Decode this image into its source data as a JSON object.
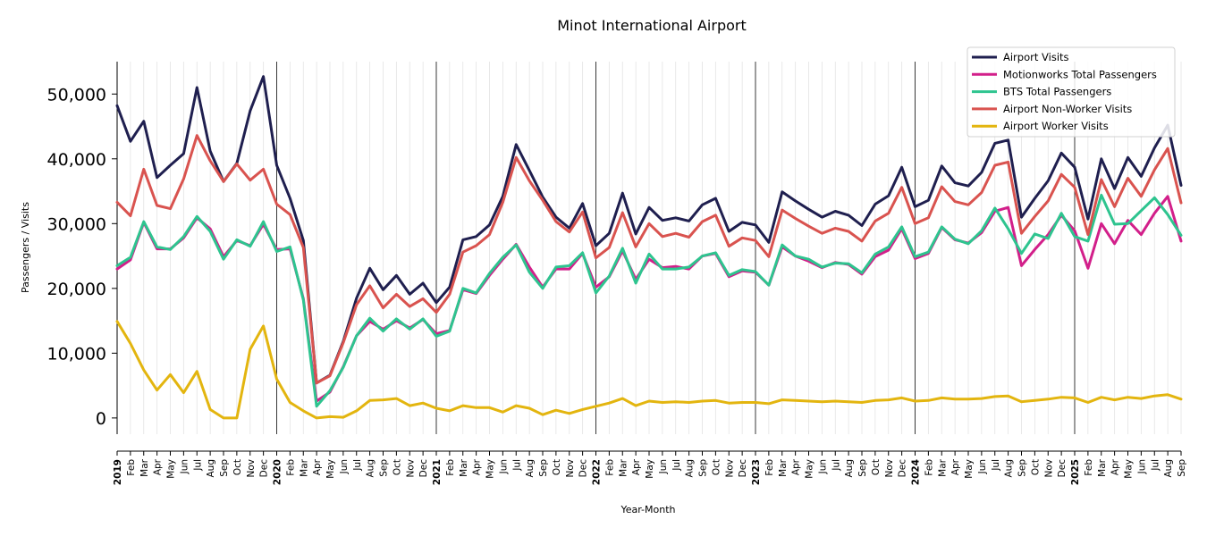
{
  "chart_data": {
    "type": "line",
    "title": "Minot International Airport",
    "xlabel": "Year-Month",
    "ylabel": "Passengers / Visits",
    "ylim": [
      -2500,
      55000
    ],
    "yticks": [
      0,
      10000,
      20000,
      30000,
      40000,
      50000
    ],
    "ytick_labels": [
      "0",
      "10,000",
      "20,000",
      "30,000",
      "40,000",
      "50,000"
    ],
    "grid": "vertical monthly lines, darker line at each year start",
    "legend_position": "top-right",
    "x": [
      "2019",
      "Feb",
      "Mar",
      "Apr",
      "May",
      "Jun",
      "Jul",
      "Aug",
      "Sep",
      "Oct",
      "Nov",
      "Dec",
      "2020",
      "Feb",
      "Mar",
      "Apr",
      "May",
      "Jun",
      "Jul",
      "Aug",
      "Sep",
      "Oct",
      "Nov",
      "Dec",
      "2021",
      "Feb",
      "Mar",
      "Apr",
      "May",
      "Jun",
      "Jul",
      "Aug",
      "Sep",
      "Oct",
      "Nov",
      "Dec",
      "2022",
      "Feb",
      "Mar",
      "Apr",
      "May",
      "Jun",
      "Jul",
      "Aug",
      "Sep",
      "Oct",
      "Nov",
      "Dec",
      "2023",
      "Feb",
      "Mar",
      "Apr",
      "May",
      "Jun",
      "Jul",
      "Aug",
      "Sep",
      "Oct",
      "Nov",
      "Dec",
      "2024",
      "Feb",
      "Mar",
      "Apr",
      "May",
      "Jun",
      "Jul",
      "Aug",
      "Sep",
      "Oct",
      "Nov",
      "Dec",
      "2025",
      "Feb",
      "Mar",
      "Apr",
      "May",
      "Jun",
      "Jul",
      "Aug",
      "Sep"
    ],
    "series": [
      {
        "name": "Airport Visits",
        "color": "#1f1f4f",
        "values": [
          48200,
          42700,
          45800,
          37100,
          39000,
          40800,
          51000,
          41200,
          36500,
          39300,
          47400,
          52700,
          39000,
          33900,
          27400,
          5400,
          6600,
          11800,
          18500,
          23100,
          19800,
          22000,
          19100,
          20800,
          17800,
          20200,
          27500,
          28000,
          29800,
          34200,
          42200,
          38200,
          34100,
          31000,
          29300,
          33100,
          26600,
          28500,
          34700,
          28400,
          32500,
          30500,
          30900,
          30400,
          32900,
          33900,
          28800,
          30200,
          29800,
          27100,
          34900,
          33500,
          32200,
          31000,
          31900,
          31300,
          29700,
          33000,
          34300,
          38700,
          32600,
          33600,
          38900,
          36300,
          35800,
          37900,
          42400,
          42900,
          31000,
          33900,
          36600,
          40900,
          38700,
          30700,
          40000,
          35400,
          40200,
          37300,
          41700,
          45200,
          35900
        ]
      },
      {
        "name": "Motionworks Total Passengers",
        "color": "#d21f8a",
        "values": [
          23000,
          24400,
          30200,
          26100,
          26100,
          27800,
          30900,
          29200,
          24900,
          27400,
          26600,
          29900,
          26000,
          26100,
          18400,
          2600,
          4000,
          7900,
          12700,
          14900,
          13700,
          15000,
          13900,
          15200,
          13000,
          13500,
          19800,
          19200,
          22000,
          24500,
          26800,
          23300,
          20200,
          23000,
          23000,
          25400,
          20200,
          21800,
          25800,
          21400,
          24500,
          23200,
          23400,
          23000,
          25000,
          25400,
          21800,
          22700,
          22500,
          20500,
          26400,
          25000,
          24200,
          23200,
          24000,
          23700,
          22200,
          24900,
          25900,
          29200,
          24600,
          25400,
          29400,
          27500,
          27000,
          28600,
          31900,
          32500,
          23500,
          26000,
          28300,
          31300,
          28900,
          23100,
          30000,
          26900,
          30500,
          28300,
          31600,
          34200,
          27300
        ]
      },
      {
        "name": "BTS Total Passengers",
        "color": "#2ec48f",
        "values": [
          23500,
          24800,
          30300,
          26400,
          26000,
          28000,
          31100,
          28800,
          24500,
          27500,
          26500,
          30300,
          25700,
          26400,
          18200,
          1800,
          4200,
          7800,
          12700,
          15400,
          13400,
          15300,
          13700,
          15300,
          12600,
          13400,
          20000,
          19300,
          22300,
          24800,
          26700,
          22500,
          20000,
          23300,
          23500,
          25500,
          19300,
          21900,
          26200,
          20800,
          25300,
          23000,
          23000,
          23300,
          25000,
          25500,
          22000,
          22900,
          22600,
          20500,
          26700,
          25000,
          24500,
          23300,
          23900,
          23800,
          22400,
          25300,
          26400,
          29500,
          24900,
          25600,
          29500,
          27600,
          26900,
          28900,
          32400,
          29200,
          25400,
          28400,
          27700,
          31600,
          28000,
          27300,
          34400,
          29900,
          30000,
          32000,
          34000,
          31400,
          28200
        ]
      },
      {
        "name": "Airport Non-Worker Visits",
        "color": "#d9534f",
        "values": [
          33300,
          31200,
          38400,
          32800,
          32300,
          36900,
          43600,
          39700,
          36500,
          39200,
          36700,
          38400,
          33000,
          31400,
          26300,
          5400,
          6500,
          11600,
          17500,
          20400,
          17000,
          19100,
          17200,
          18400,
          16300,
          19100,
          25600,
          26600,
          28300,
          33300,
          40200,
          36600,
          33600,
          30300,
          28700,
          31800,
          24700,
          26300,
          31700,
          26400,
          30000,
          28000,
          28500,
          27900,
          30300,
          31300,
          26500,
          27800,
          27400,
          24900,
          32100,
          30800,
          29600,
          28500,
          29300,
          28800,
          27300,
          30400,
          31600,
          35600,
          30000,
          30900,
          35700,
          33400,
          32900,
          34800,
          39000,
          39500,
          28500,
          31100,
          33500,
          37600,
          35600,
          28300,
          36800,
          32600,
          37000,
          34200,
          38300,
          41600,
          33200
        ]
      },
      {
        "name": "Airport Worker Visits",
        "color": "#e3b50f",
        "values": [
          14900,
          11500,
          7400,
          4300,
          6700,
          3900,
          7200,
          1300,
          0,
          0,
          10600,
          14200,
          6000,
          2400,
          1100,
          0,
          200,
          100,
          1100,
          2700,
          2800,
          3000,
          1900,
          2300,
          1500,
          1100,
          1900,
          1600,
          1600,
          900,
          1900,
          1500,
          500,
          1200,
          700,
          1300,
          1800,
          2300,
          3000,
          1900,
          2600,
          2400,
          2500,
          2400,
          2600,
          2700,
          2300,
          2400,
          2400,
          2200,
          2800,
          2700,
          2600,
          2500,
          2600,
          2500,
          2400,
          2700,
          2800,
          3100,
          2600,
          2700,
          3100,
          2900,
          2900,
          3000,
          3300,
          3400,
          2500,
          2700,
          2900,
          3200,
          3100,
          2400,
          3200,
          2800,
          3200,
          3000,
          3400,
          3600,
          2900
        ]
      }
    ]
  }
}
